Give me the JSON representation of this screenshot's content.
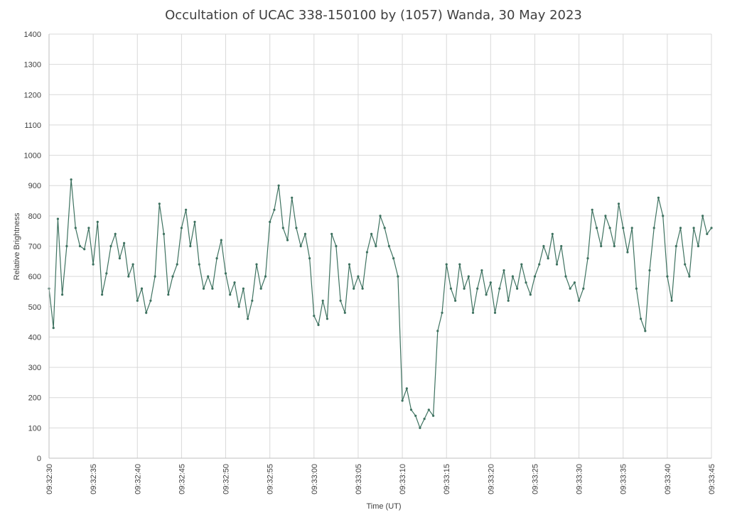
{
  "chart_data": {
    "type": "line",
    "title": "Occultation of UCAC 338-150100 by (1057) Wanda, 30 May 2023",
    "xlabel": "Time (UT)",
    "ylabel": "Relative Brightness",
    "ylim": [
      0,
      1400
    ],
    "yticks": [
      0,
      100,
      200,
      300,
      400,
      500,
      600,
      700,
      800,
      900,
      1000,
      1100,
      1200,
      1300,
      1400
    ],
    "xlim": [
      "09:32:30",
      "09:33:45"
    ],
    "xticks": [
      "09:32:30",
      "09:32:35",
      "09:32:40",
      "09:32:45",
      "09:32:50",
      "09:32:55",
      "09:33:00",
      "09:33:05",
      "09:33:10",
      "09:33:15",
      "09:33:20",
      "09:33:25",
      "09:33:30",
      "09:33:35",
      "09:33:40",
      "09:33:45"
    ],
    "grid": true,
    "legend": "none",
    "series": [
      {
        "color": "#3e7260",
        "points": [
          [
            "09:32:30.0",
            560
          ],
          [
            "09:32:30.5",
            430
          ],
          [
            "09:32:31.0",
            790
          ],
          [
            "09:32:31.5",
            540
          ],
          [
            "09:32:32.0",
            700
          ],
          [
            "09:32:32.5",
            920
          ],
          [
            "09:32:33.0",
            760
          ],
          [
            "09:32:33.5",
            700
          ],
          [
            "09:32:34.0",
            690
          ],
          [
            "09:32:34.5",
            760
          ],
          [
            "09:32:35.0",
            640
          ],
          [
            "09:32:35.5",
            780
          ],
          [
            "09:32:36.0",
            540
          ],
          [
            "09:32:36.5",
            610
          ],
          [
            "09:32:37.0",
            700
          ],
          [
            "09:32:37.5",
            740
          ],
          [
            "09:32:38.0",
            660
          ],
          [
            "09:32:38.5",
            710
          ],
          [
            "09:32:39.0",
            600
          ],
          [
            "09:32:39.5",
            640
          ],
          [
            "09:32:40.0",
            520
          ],
          [
            "09:32:40.5",
            560
          ],
          [
            "09:32:41.0",
            480
          ],
          [
            "09:32:41.5",
            520
          ],
          [
            "09:32:42.0",
            600
          ],
          [
            "09:32:42.5",
            840
          ],
          [
            "09:32:43.0",
            740
          ],
          [
            "09:32:43.5",
            540
          ],
          [
            "09:32:44.0",
            600
          ],
          [
            "09:32:44.5",
            640
          ],
          [
            "09:32:45.0",
            760
          ],
          [
            "09:32:45.5",
            820
          ],
          [
            "09:32:46.0",
            700
          ],
          [
            "09:32:46.5",
            780
          ],
          [
            "09:32:47.0",
            640
          ],
          [
            "09:32:47.5",
            560
          ],
          [
            "09:32:48.0",
            600
          ],
          [
            "09:32:48.5",
            560
          ],
          [
            "09:32:49.0",
            660
          ],
          [
            "09:32:49.5",
            720
          ],
          [
            "09:32:50.0",
            610
          ],
          [
            "09:32:50.5",
            540
          ],
          [
            "09:32:51.0",
            580
          ],
          [
            "09:32:51.5",
            500
          ],
          [
            "09:32:52.0",
            560
          ],
          [
            "09:32:52.5",
            460
          ],
          [
            "09:32:53.0",
            520
          ],
          [
            "09:32:53.5",
            640
          ],
          [
            "09:32:54.0",
            560
          ],
          [
            "09:32:54.5",
            600
          ],
          [
            "09:32:55.0",
            780
          ],
          [
            "09:32:55.5",
            820
          ],
          [
            "09:32:56.0",
            900
          ],
          [
            "09:32:56.5",
            760
          ],
          [
            "09:32:57.0",
            720
          ],
          [
            "09:32:57.5",
            860
          ],
          [
            "09:32:58.0",
            760
          ],
          [
            "09:32:58.5",
            700
          ],
          [
            "09:32:59.0",
            740
          ],
          [
            "09:32:59.5",
            660
          ],
          [
            "09:33:00.0",
            470
          ],
          [
            "09:33:00.5",
            440
          ],
          [
            "09:33:01.0",
            520
          ],
          [
            "09:33:01.5",
            460
          ],
          [
            "09:33:02.0",
            740
          ],
          [
            "09:33:02.5",
            700
          ],
          [
            "09:33:03.0",
            520
          ],
          [
            "09:33:03.5",
            480
          ],
          [
            "09:33:04.0",
            640
          ],
          [
            "09:33:04.5",
            560
          ],
          [
            "09:33:05.0",
            600
          ],
          [
            "09:33:05.5",
            560
          ],
          [
            "09:33:06.0",
            680
          ],
          [
            "09:33:06.5",
            740
          ],
          [
            "09:33:07.0",
            700
          ],
          [
            "09:33:07.5",
            800
          ],
          [
            "09:33:08.0",
            760
          ],
          [
            "09:33:08.5",
            700
          ],
          [
            "09:33:09.0",
            660
          ],
          [
            "09:33:09.5",
            600
          ],
          [
            "09:33:10.0",
            190
          ],
          [
            "09:33:10.5",
            230
          ],
          [
            "09:33:11.0",
            160
          ],
          [
            "09:33:11.5",
            140
          ],
          [
            "09:33:12.0",
            100
          ],
          [
            "09:33:12.5",
            130
          ],
          [
            "09:33:13.0",
            160
          ],
          [
            "09:33:13.5",
            140
          ],
          [
            "09:33:14.0",
            420
          ],
          [
            "09:33:14.5",
            480
          ],
          [
            "09:33:15.0",
            640
          ],
          [
            "09:33:15.5",
            560
          ],
          [
            "09:33:16.0",
            520
          ],
          [
            "09:33:16.5",
            640
          ],
          [
            "09:33:17.0",
            560
          ],
          [
            "09:33:17.5",
            600
          ],
          [
            "09:33:18.0",
            480
          ],
          [
            "09:33:18.5",
            560
          ],
          [
            "09:33:19.0",
            620
          ],
          [
            "09:33:19.5",
            540
          ],
          [
            "09:33:20.0",
            580
          ],
          [
            "09:33:20.5",
            480
          ],
          [
            "09:33:21.0",
            560
          ],
          [
            "09:33:21.5",
            620
          ],
          [
            "09:33:22.0",
            520
          ],
          [
            "09:33:22.5",
            600
          ],
          [
            "09:33:23.0",
            560
          ],
          [
            "09:33:23.5",
            640
          ],
          [
            "09:33:24.0",
            580
          ],
          [
            "09:33:24.5",
            540
          ],
          [
            "09:33:25.0",
            600
          ],
          [
            "09:33:25.5",
            640
          ],
          [
            "09:33:26.0",
            700
          ],
          [
            "09:33:26.5",
            660
          ],
          [
            "09:33:27.0",
            740
          ],
          [
            "09:33:27.5",
            640
          ],
          [
            "09:33:28.0",
            700
          ],
          [
            "09:33:28.5",
            600
          ],
          [
            "09:33:29.0",
            560
          ],
          [
            "09:33:29.5",
            580
          ],
          [
            "09:33:30.0",
            520
          ],
          [
            "09:33:30.5",
            560
          ],
          [
            "09:33:31.0",
            660
          ],
          [
            "09:33:31.5",
            820
          ],
          [
            "09:33:32.0",
            760
          ],
          [
            "09:33:32.5",
            700
          ],
          [
            "09:33:33.0",
            800
          ],
          [
            "09:33:33.5",
            760
          ],
          [
            "09:33:34.0",
            700
          ],
          [
            "09:33:34.5",
            840
          ],
          [
            "09:33:35.0",
            760
          ],
          [
            "09:33:35.5",
            680
          ],
          [
            "09:33:36.0",
            760
          ],
          [
            "09:33:36.5",
            560
          ],
          [
            "09:33:37.0",
            460
          ],
          [
            "09:33:37.5",
            420
          ],
          [
            "09:33:38.0",
            620
          ],
          [
            "09:33:38.5",
            760
          ],
          [
            "09:33:39.0",
            860
          ],
          [
            "09:33:39.5",
            800
          ],
          [
            "09:33:40.0",
            600
          ],
          [
            "09:33:40.5",
            520
          ],
          [
            "09:33:41.0",
            700
          ],
          [
            "09:33:41.5",
            760
          ],
          [
            "09:33:42.0",
            640
          ],
          [
            "09:33:42.5",
            600
          ],
          [
            "09:33:43.0",
            760
          ],
          [
            "09:33:43.5",
            700
          ],
          [
            "09:33:44.0",
            800
          ],
          [
            "09:33:44.5",
            740
          ],
          [
            "09:33:45.0",
            760
          ]
        ]
      }
    ]
  }
}
